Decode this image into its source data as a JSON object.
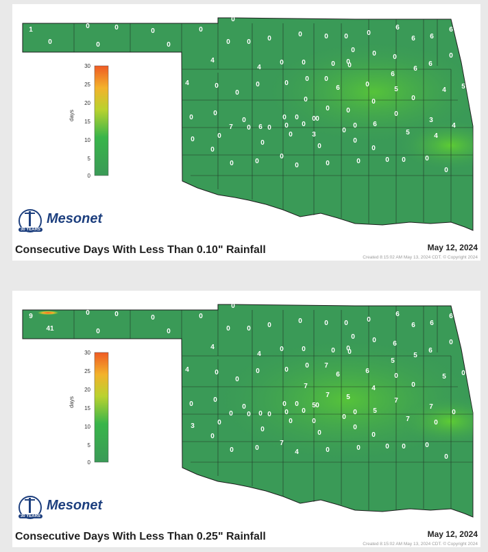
{
  "panels": [
    {
      "title": "Consecutive Days With Less Than 0.10\" Rainfall",
      "date": "May 12, 2024",
      "created": "Created 8:15:02 AM May 13, 2024 CDT. © Copyright 2024",
      "values": [
        "1",
        "0",
        "0",
        "0",
        "0",
        "0",
        "0",
        "0",
        "0",
        "0",
        "0",
        "0",
        "0",
        "0",
        "0",
        "0",
        "0",
        "0",
        "6",
        "6",
        "6",
        "6",
        "4",
        "0",
        "4",
        "0",
        "0",
        "0",
        "0",
        "0",
        "0",
        "6",
        "4",
        "0",
        "0",
        "0",
        "0",
        "0",
        "0",
        "6",
        "0",
        "6",
        "6",
        "0",
        "5",
        "4",
        "0",
        "5",
        "0",
        "0",
        "0",
        "0",
        "6",
        "0",
        "3",
        "5",
        "4",
        "4",
        "0",
        "0",
        "0",
        "6",
        "0",
        "0",
        "0",
        "0",
        "0",
        "7",
        "0",
        "0",
        "0",
        "0",
        "0",
        "0",
        "0",
        "3",
        "0",
        "0",
        "0",
        "0",
        "0",
        "0",
        "0",
        "0",
        "0",
        "0",
        "0",
        "0",
        "0",
        "0",
        "0"
      ]
    },
    {
      "title": "Consecutive Days With Less Than 0.25\" Rainfall",
      "date": "May 12, 2024",
      "created": "Created 8:15:02 AM May 13, 2024 CDT. © Copyright 2024",
      "values": [
        "9",
        "41",
        "0",
        "0",
        "0",
        "0",
        "0",
        "0",
        "0",
        "0",
        "0",
        "0",
        "0",
        "0",
        "0",
        "0",
        "0",
        "0",
        "6",
        "6",
        "6",
        "6",
        "4",
        "0",
        "4",
        "0",
        "0",
        "0",
        "0",
        "0",
        "6",
        "6",
        "4",
        "0",
        "0",
        "0",
        "0",
        "0",
        "7",
        "6",
        "6",
        "5",
        "5",
        "4",
        "0",
        "5",
        "0",
        "0",
        "7",
        "7",
        "5",
        "5",
        "5",
        "7",
        "7",
        "7",
        "0",
        "0",
        "0",
        "0",
        "0",
        "0",
        "0",
        "0",
        "0",
        "3",
        "0",
        "0",
        "0",
        "0",
        "0",
        "0",
        "0",
        "0",
        "0",
        "0",
        "0",
        "0",
        "0",
        "0",
        "0",
        "0",
        "0",
        "7",
        "4",
        "0",
        "0",
        "0",
        "0",
        "0",
        "0"
      ]
    }
  ],
  "legend": {
    "axis_label": "days",
    "ticks": [
      "30",
      "25",
      "20",
      "15",
      "10",
      "5",
      "0"
    ]
  },
  "logo": {
    "name": "Mesonet",
    "badge": "30 YEARS"
  },
  "colors": {
    "map_green": "#3a9a57",
    "bright_green": "#5cc43c",
    "hot": "#ef6a25",
    "border": "#1b1b1b"
  }
}
